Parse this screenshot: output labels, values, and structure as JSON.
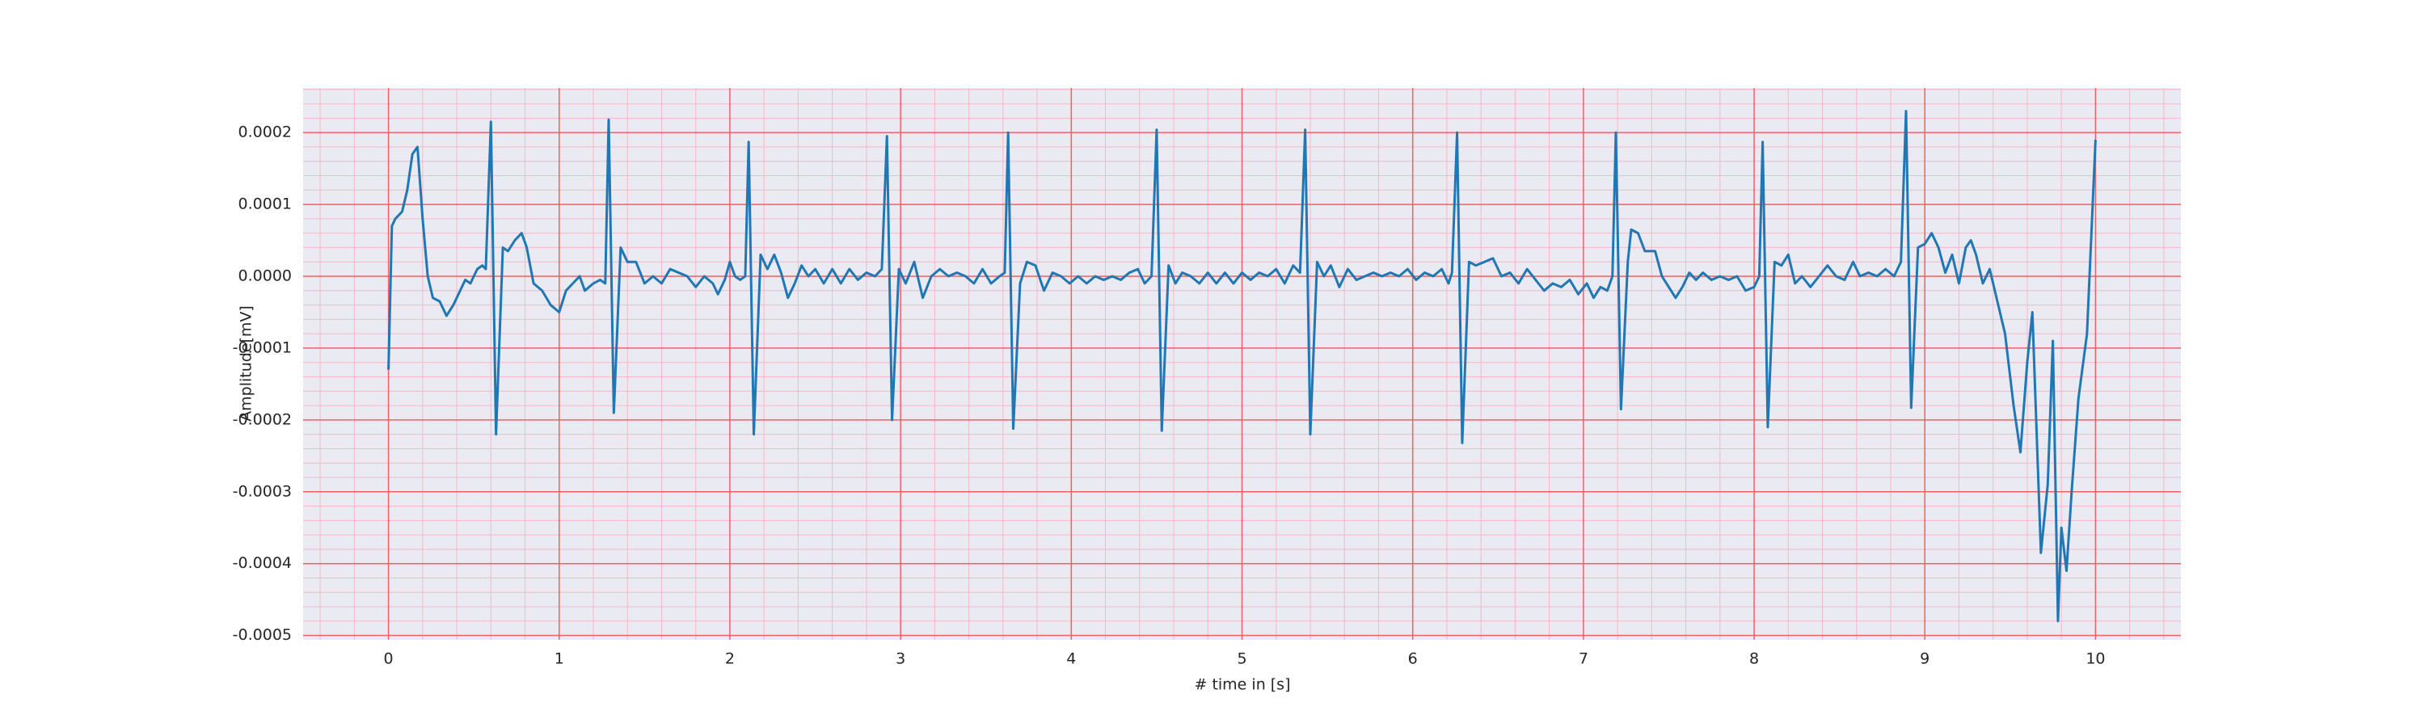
{
  "chart_data": {
    "type": "line",
    "xlabel": "# time in [s]",
    "ylabel": "Amplitude[mV]",
    "color": "#1f77b4",
    "grid": true,
    "minor_grid": true,
    "xlim": [
      -0.5,
      10.5
    ],
    "xticks": [
      0,
      1,
      2,
      3,
      4,
      5,
      6,
      7,
      8,
      9,
      10
    ],
    "ylim": [
      -0.000506,
      0.000262
    ],
    "yticks": [
      {
        "value": -0.0005,
        "label": "-0.0005"
      },
      {
        "value": -0.0004,
        "label": "-0.0004"
      },
      {
        "value": -0.0003,
        "label": "-0.0003"
      },
      {
        "value": -0.0002,
        "label": "-0.0002"
      },
      {
        "value": -0.0001,
        "label": "-0.0001"
      },
      {
        "value": 0,
        "label": "0.0000"
      },
      {
        "value": 0.0001,
        "label": "0.0001"
      },
      {
        "value": 0.0002,
        "label": "0.0002"
      }
    ],
    "x": [
      0,
      0.02,
      0.04,
      0.08,
      0.11,
      0.14,
      0.17,
      0.2,
      0.23,
      0.26,
      0.3,
      0.34,
      0.38,
      0.42,
      0.45,
      0.48,
      0.52,
      0.55,
      0.57,
      0.6,
      0.63,
      0.67,
      0.7,
      0.74,
      0.78,
      0.81,
      0.85,
      0.9,
      0.95,
      1.0,
      1.04,
      1.08,
      1.12,
      1.15,
      1.2,
      1.24,
      1.27,
      1.29,
      1.32,
      1.36,
      1.4,
      1.45,
      1.5,
      1.55,
      1.6,
      1.65,
      1.7,
      1.75,
      1.8,
      1.85,
      1.9,
      1.93,
      1.97,
      2.0,
      2.03,
      2.06,
      2.09,
      2.11,
      2.14,
      2.18,
      2.22,
      2.26,
      2.3,
      2.34,
      2.38,
      2.42,
      2.46,
      2.5,
      2.55,
      2.6,
      2.65,
      2.7,
      2.75,
      2.8,
      2.85,
      2.89,
      2.92,
      2.95,
      2.99,
      3.03,
      3.08,
      3.13,
      3.18,
      3.23,
      3.28,
      3.33,
      3.38,
      3.43,
      3.48,
      3.53,
      3.58,
      3.61,
      3.63,
      3.66,
      3.7,
      3.74,
      3.79,
      3.84,
      3.89,
      3.94,
      3.99,
      4.04,
      4.09,
      4.14,
      4.19,
      4.24,
      4.29,
      4.34,
      4.39,
      4.43,
      4.47,
      4.5,
      4.53,
      4.57,
      4.61,
      4.65,
      4.7,
      4.75,
      4.8,
      4.85,
      4.9,
      4.95,
      5.0,
      5.05,
      5.1,
      5.15,
      5.2,
      5.25,
      5.3,
      5.34,
      5.37,
      5.4,
      5.44,
      5.48,
      5.52,
      5.57,
      5.62,
      5.67,
      5.72,
      5.77,
      5.82,
      5.87,
      5.92,
      5.97,
      6.02,
      6.07,
      6.12,
      6.17,
      6.21,
      6.23,
      6.26,
      6.29,
      6.33,
      6.37,
      6.42,
      6.47,
      6.52,
      6.57,
      6.62,
      6.67,
      6.72,
      6.77,
      6.82,
      6.87,
      6.92,
      6.97,
      7.02,
      7.06,
      7.1,
      7.14,
      7.17,
      7.19,
      7.22,
      7.26,
      7.28,
      7.32,
      7.36,
      7.42,
      7.46,
      7.5,
      7.54,
      7.58,
      7.62,
      7.66,
      7.7,
      7.75,
      7.8,
      7.85,
      7.9,
      7.95,
      8.0,
      8.03,
      8.05,
      8.08,
      8.12,
      8.16,
      8.2,
      8.24,
      8.28,
      8.33,
      8.38,
      8.43,
      8.48,
      8.53,
      8.58,
      8.62,
      8.67,
      8.72,
      8.77,
      8.82,
      8.86,
      8.89,
      8.92,
      8.96,
      9.0,
      9.04,
      9.08,
      9.12,
      9.16,
      9.2,
      9.24,
      9.27,
      9.3,
      9.34,
      9.38,
      9.42,
      9.47,
      9.52,
      9.56,
      9.6,
      9.63,
      9.68,
      9.72,
      9.75,
      9.78,
      9.8,
      9.83,
      9.86,
      9.9,
      9.95,
      10.0
    ],
    "values": [
      -0.00013,
      7e-05,
      8e-05,
      9e-05,
      0.00012,
      0.00017,
      0.00018,
      8e-05,
      0.0,
      -3e-05,
      -3.5e-05,
      -5.5e-05,
      -4e-05,
      -2e-05,
      -5e-06,
      -1e-05,
      1e-05,
      1.5e-05,
      1e-05,
      0.000215,
      -0.00022,
      4e-05,
      3.5e-05,
      5e-05,
      6e-05,
      4e-05,
      -1e-05,
      -2e-05,
      -4e-05,
      -5e-05,
      -2e-05,
      -1e-05,
      0.0,
      -2e-05,
      -1e-05,
      -5e-06,
      -1e-05,
      0.000218,
      -0.00019,
      4e-05,
      2e-05,
      2e-05,
      -1e-05,
      0.0,
      -1e-05,
      1e-05,
      5e-06,
      0.0,
      -1.5e-05,
      0.0,
      -1e-05,
      -2.5e-05,
      -5e-06,
      2e-05,
      0.0,
      -5e-06,
      0.0,
      0.000187,
      -0.00022,
      3e-05,
      1e-05,
      3e-05,
      5e-06,
      -3e-05,
      -1e-05,
      1.5e-05,
      0.0,
      1e-05,
      -1e-05,
      1e-05,
      -1e-05,
      1e-05,
      -5e-06,
      5e-06,
      0.0,
      1e-05,
      0.000195,
      -0.0002,
      1e-05,
      -1e-05,
      2e-05,
      -3e-05,
      0.0,
      1e-05,
      0.0,
      5e-06,
      0.0,
      -1e-05,
      1e-05,
      -1e-05,
      0.0,
      5e-06,
      0.0002,
      -0.000212,
      -1e-05,
      2e-05,
      1.5e-05,
      -2e-05,
      5e-06,
      0.0,
      -1e-05,
      0.0,
      -1e-05,
      0.0,
      -5e-06,
      0.0,
      -5e-06,
      5e-06,
      1e-05,
      -1e-05,
      0.0,
      0.000204,
      -0.000215,
      1.5e-05,
      -1e-05,
      5e-06,
      0.0,
      -1e-05,
      5e-06,
      -1e-05,
      5e-06,
      -1e-05,
      5e-06,
      -5e-06,
      5e-06,
      0.0,
      1e-05,
      -1e-05,
      1.5e-05,
      5e-06,
      0.000204,
      -0.00022,
      2e-05,
      0.0,
      1.5e-05,
      -1.5e-05,
      1e-05,
      -5e-06,
      0.0,
      5e-06,
      0.0,
      5e-06,
      0.0,
      1e-05,
      -5e-06,
      5e-06,
      0.0,
      1e-05,
      -1e-05,
      5e-06,
      0.0002,
      -0.000232,
      2e-05,
      1.5e-05,
      2e-05,
      2.5e-05,
      0.0,
      5e-06,
      -1e-05,
      1e-05,
      -5e-06,
      -2e-05,
      -1e-05,
      -1.5e-05,
      -5e-06,
      -2.5e-05,
      -1e-05,
      -3e-05,
      -1.5e-05,
      -2e-05,
      0.0,
      0.0002,
      -0.000185,
      2e-05,
      6.5e-05,
      6e-05,
      3.5e-05,
      3.5e-05,
      0.0,
      -1.5e-05,
      -3e-05,
      -1.5e-05,
      5e-06,
      -5e-06,
      5e-06,
      -5e-06,
      0.0,
      -5e-06,
      0.0,
      -2e-05,
      -1.5e-05,
      0.0,
      0.000187,
      -0.00021,
      2e-05,
      1.5e-05,
      3e-05,
      -1e-05,
      0.0,
      -1.5e-05,
      0.0,
      1.5e-05,
      0.0,
      -5e-06,
      2e-05,
      0.0,
      5e-06,
      0.0,
      1e-05,
      0.0,
      2e-05,
      0.00023,
      -0.000183,
      4e-05,
      4.5e-05,
      6e-05,
      4e-05,
      5e-06,
      3e-05,
      -1e-05,
      4e-05,
      5e-05,
      3e-05,
      -1e-05,
      1e-05,
      -3e-05,
      -8e-05,
      -0.00018,
      -0.000245,
      -0.00012,
      -5e-05,
      -0.000385,
      -0.00029,
      -9e-05,
      -0.00048,
      -0.00035,
      -0.00041,
      -0.0003,
      -0.00017,
      -8e-05,
      0.00019
    ]
  }
}
